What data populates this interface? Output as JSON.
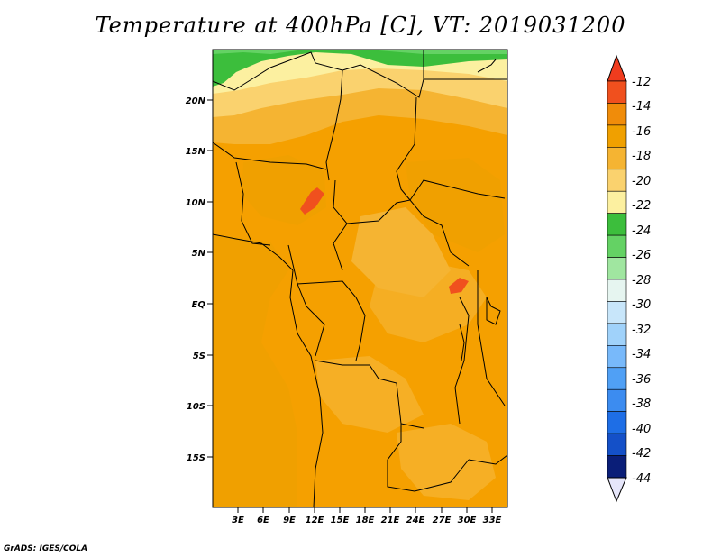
{
  "map": {
    "title": "Temperature at 400hPa [C], VT: 2019031200",
    "credit": "GrADS: IGES/COLA",
    "lat_labels": [
      "20N",
      "15N",
      "10N",
      "5N",
      "EQ",
      "5S",
      "10S",
      "15S"
    ],
    "lon_labels": [
      "3E",
      "6E",
      "9E",
      "12E",
      "15E",
      "18E",
      "21E",
      "24E",
      "27E",
      "30E",
      "33E"
    ],
    "field": "Temperature",
    "level": "400hPa",
    "units": "C",
    "valid_time": "2019031200"
  },
  "colorbar": {
    "labels": [
      "-12",
      "-14",
      "-16",
      "-18",
      "-20",
      "-22",
      "-24",
      "-26",
      "-28",
      "-30",
      "-32",
      "-34",
      "-36",
      "-38",
      "-40",
      "-42",
      "-44"
    ],
    "colors": [
      "#f0501e",
      "#f08c0a",
      "#f0a000",
      "#f5b432",
      "#fad26e",
      "#fcf0a0",
      "#3cbe3c",
      "#64d264",
      "#a0e6a0",
      "#e6f5f0",
      "#c8e6fa",
      "#a0d2fa",
      "#78b9fa",
      "#50a0f5",
      "#3c8cf0",
      "#1e6ee6",
      "#1450c8",
      "#0a1e78"
    ],
    "top_arrow_color": "#f03c1e",
    "bottom_arrow_color": "#e6e6fa"
  }
}
